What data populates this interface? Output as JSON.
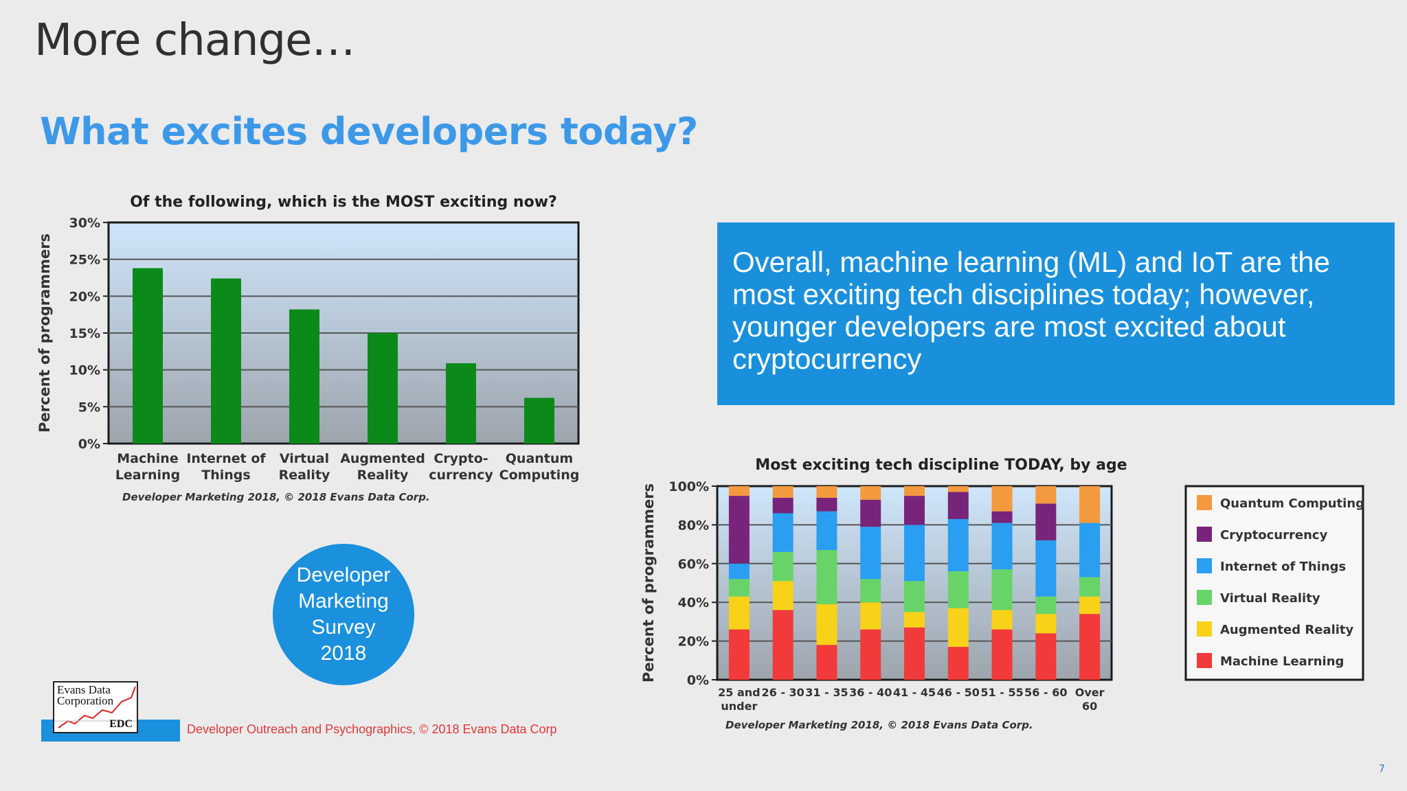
{
  "slide": {
    "title": "More change…",
    "subtitle": "What excites developers today?",
    "callout": "Overall, machine learning (ML) and IoT are the most exciting tech disciplines today; however, younger developers are most excited about cryptocurrency",
    "badge_lines": [
      "Developer",
      "Marketing",
      "Survey",
      "2018"
    ],
    "logo_text": "Evans Data Corporation",
    "logo_abbr": "EDC",
    "footer_note": "Developer Outreach and Psychographics, © 2018 Evans Data Corp",
    "page_number": "7"
  },
  "colors": {
    "bar": "#0b8a1a",
    "accent": "#1b90dc",
    "title_blue": "#3d99e8",
    "footer_red": "#e0383a"
  },
  "chart_data": [
    {
      "type": "bar",
      "title": "Of the following, which is the MOST exciting now?",
      "categories": [
        "Machine Learning",
        "Internet of Things",
        "Virtual Reality",
        "Augmented Reality",
        "Crypto-currency",
        "Quantum Computing"
      ],
      "category_lines": [
        [
          "Machine",
          "Learning"
        ],
        [
          "Internet of",
          "Things"
        ],
        [
          "Virtual",
          "Reality"
        ],
        [
          "Augmented",
          "Reality"
        ],
        [
          "Crypto-",
          "currency"
        ],
        [
          "Quantum",
          "Computing"
        ]
      ],
      "values": [
        23.8,
        22.4,
        18.2,
        15.0,
        10.9,
        6.2
      ],
      "ylabel": "Percent of programmers",
      "ylim": [
        0,
        30
      ],
      "yticks": [
        0,
        5,
        10,
        15,
        20,
        25,
        30
      ],
      "ytick_labels": [
        "0%",
        "5%",
        "10%",
        "15%",
        "20%",
        "25%",
        "30%"
      ],
      "source": "Developer Marketing 2018, © 2018 Evans Data Corp."
    },
    {
      "type": "bar",
      "stacked": true,
      "title": "Most exciting tech discipline TODAY, by age",
      "categories": [
        "25 and under",
        "26 - 30",
        "31 - 35",
        "36 - 40",
        "41 - 45",
        "46 - 50",
        "51 - 55",
        "56 - 60",
        "Over 60"
      ],
      "category_lines": [
        [
          "25 and",
          "under"
        ],
        [
          "26 - 30"
        ],
        [
          "31 - 35"
        ],
        [
          "36 - 40"
        ],
        [
          "41 - 45"
        ],
        [
          "46 - 50"
        ],
        [
          "51 - 55"
        ],
        [
          "56 - 60"
        ],
        [
          "Over",
          "60"
        ]
      ],
      "ylabel": "Percent of programmers",
      "ylim": [
        0,
        100
      ],
      "yticks": [
        0,
        20,
        40,
        60,
        80,
        100
      ],
      "ytick_labels": [
        "0%",
        "20%",
        "40%",
        "60%",
        "80%",
        "100%"
      ],
      "series": [
        {
          "name": "Machine Learning",
          "color": "#f23a3a",
          "values": [
            26,
            36,
            18,
            26,
            27,
            17,
            26,
            24,
            34
          ]
        },
        {
          "name": "Augmented Reality",
          "color": "#f7d218",
          "values": [
            17,
            15,
            21,
            14,
            8,
            20,
            10,
            10,
            9
          ]
        },
        {
          "name": "Virtual Reality",
          "color": "#68d468",
          "values": [
            9,
            15,
            28,
            12,
            16,
            19,
            21,
            9,
            10
          ]
        },
        {
          "name": "Internet of Things",
          "color": "#2a9ef0",
          "values": [
            8,
            20,
            20,
            27,
            29,
            27,
            24,
            29,
            28
          ]
        },
        {
          "name": "Cryptocurrency",
          "color": "#77247a",
          "values": [
            35,
            8,
            7,
            14,
            15,
            14,
            6,
            19,
            0
          ]
        },
        {
          "name": "Quantum Computing",
          "color": "#f39a3e",
          "values": [
            5,
            6,
            6,
            7,
            5,
            3,
            13,
            9,
            19
          ]
        }
      ],
      "legend_order": [
        "Quantum Computing",
        "Cryptocurrency",
        "Internet of Things",
        "Virtual Reality",
        "Augmented Reality",
        "Machine Learning"
      ],
      "legend_position": "right",
      "source": "Developer Marketing 2018, © 2018 Evans Data Corp."
    }
  ]
}
